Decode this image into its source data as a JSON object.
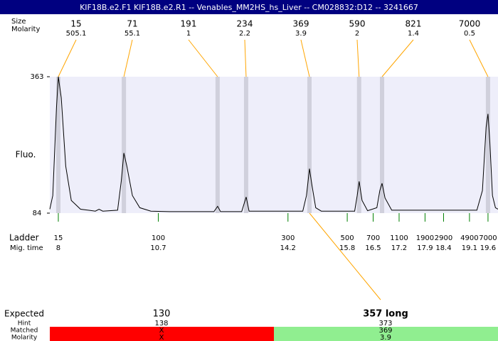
{
  "title": "KIF18B.e2.F1  KIF18B.e2.R1 -- Venables_MM2HS_hs_Liver -- CM028832:D12 -- 3241667",
  "chart_data": {
    "type": "line",
    "y_label": "Fluo.",
    "ylim": [
      84,
      363
    ],
    "yticks": [
      363,
      84
    ],
    "xlim": [
      7.77,
      19.87
    ],
    "color": "#000000",
    "x": [
      7.77,
      7.85,
      7.95,
      8.0,
      8.08,
      8.2,
      8.35,
      8.6,
      9.0,
      9.1,
      9.2,
      9.6,
      9.7,
      9.77,
      9.85,
      10.0,
      10.2,
      10.5,
      11.0,
      12.2,
      12.3,
      12.38,
      12.95,
      13.07,
      13.15,
      14.6,
      14.7,
      14.78,
      14.85,
      14.95,
      15.1,
      16.0,
      16.07,
      16.12,
      16.2,
      16.35,
      16.6,
      16.68,
      16.74,
      16.82,
      17.0,
      19.3,
      19.45,
      19.55,
      19.6,
      19.65,
      19.72,
      19.8,
      19.87
    ],
    "values": [
      92,
      120,
      300,
      363,
      320,
      180,
      110,
      92,
      88,
      92,
      88,
      90,
      150,
      207,
      180,
      120,
      95,
      88,
      87,
      87,
      98,
      87,
      87,
      117,
      88,
      88,
      120,
      175,
      140,
      95,
      88,
      88,
      120,
      149,
      110,
      89,
      95,
      130,
      145,
      115,
      90,
      90,
      130,
      260,
      287,
      230,
      120,
      95,
      92
    ],
    "peaks": {
      "row_labels": [
        "Size",
        "Molarity"
      ],
      "sizes": [
        15,
        71,
        191,
        234,
        369,
        590,
        821,
        7000
      ],
      "molarities": [
        505.1,
        55.1,
        1,
        2.2,
        3.9,
        2,
        1.4,
        0.5
      ],
      "mig_times": [
        8.0,
        9.77,
        12.3,
        13.07,
        14.78,
        16.12,
        16.74,
        19.6
      ]
    },
    "ladder": {
      "row_labels": [
        "Ladder",
        "Mig. time"
      ],
      "sizes": [
        15,
        100,
        300,
        500,
        700,
        1100,
        1900,
        2900,
        4900,
        7000
      ],
      "mig_times": [
        8,
        10.7,
        14.2,
        15.8,
        16.5,
        17.2,
        17.9,
        18.4,
        19.1,
        19.6
      ]
    }
  },
  "results": {
    "row_labels": [
      "Expected",
      "Hint",
      "Matched",
      "Molarity"
    ],
    "columns": [
      {
        "expected": 130,
        "hint": 138,
        "matched": "X",
        "molarity": "X",
        "color": "#ff0000"
      },
      {
        "expected": "357 long",
        "hint": 373,
        "matched": 369,
        "molarity": 3.9,
        "color": "#90ee90"
      }
    ]
  }
}
